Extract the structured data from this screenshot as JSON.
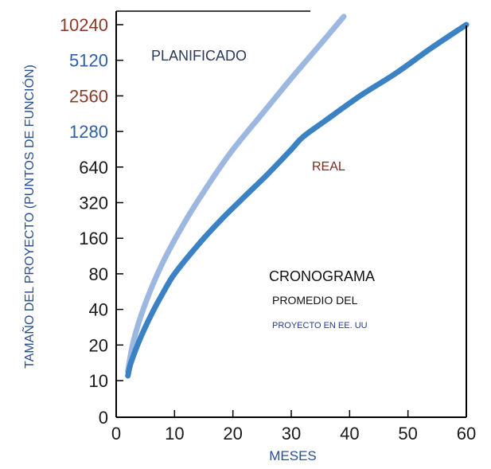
{
  "chart_data": {
    "type": "line",
    "title": "",
    "xlabel": "MESES",
    "ylabel": "TAMAÑO DEL PROYECTO (PUNTOS DE FUNCIÓN)",
    "x_ticks": [
      "0",
      "10",
      "20",
      "30",
      "40",
      "50",
      "60"
    ],
    "y_ticks": [
      {
        "label": "0",
        "color": "#1a1a1a"
      },
      {
        "label": "10",
        "color": "#1a1a1a"
      },
      {
        "label": "20",
        "color": "#1a1a1a"
      },
      {
        "label": "40",
        "color": "#1a1a1a"
      },
      {
        "label": "80",
        "color": "#1a1a1a"
      },
      {
        "label": "160",
        "color": "#1a1a1a"
      },
      {
        "label": "320",
        "color": "#1a1a1a"
      },
      {
        "label": "640",
        "color": "#1a1a1a"
      },
      {
        "label": "1280",
        "color": "#2e5fa6"
      },
      {
        "label": "2560",
        "color": "#8b3a2a"
      },
      {
        "label": "5120",
        "color": "#2e5fa6"
      },
      {
        "label": "10240",
        "color": "#8b3a2a"
      }
    ],
    "xlim": [
      0,
      60
    ],
    "y_scale": "log2",
    "grid": false,
    "series": [
      {
        "name": "PLANIFICADO",
        "color": "#9db8e0",
        "points": [
          [
            2,
            12
          ],
          [
            3,
            22
          ],
          [
            5,
            45
          ],
          [
            8,
            100
          ],
          [
            12,
            230
          ],
          [
            16,
            470
          ],
          [
            20,
            900
          ],
          [
            25,
            1800
          ],
          [
            30,
            3600
          ],
          [
            35,
            7000
          ],
          [
            39,
            12000
          ]
        ]
      },
      {
        "name": "REAL",
        "color": "#3b82c4",
        "points": [
          [
            2,
            11
          ],
          [
            2.5,
            14
          ],
          [
            4,
            22
          ],
          [
            6,
            36
          ],
          [
            8,
            55
          ],
          [
            10,
            80
          ],
          [
            14,
            140
          ],
          [
            18,
            230
          ],
          [
            22,
            360
          ],
          [
            26,
            560
          ],
          [
            30,
            900
          ],
          [
            32,
            1150
          ],
          [
            36,
            1600
          ],
          [
            42,
            2600
          ],
          [
            48,
            4000
          ],
          [
            54,
            6500
          ],
          [
            60,
            10240
          ]
        ]
      }
    ],
    "annotations": {
      "planned_label": "PLANIFICADO",
      "actual_label": "REAL",
      "box_line1": "CRONOGRAMA",
      "box_line2": "PROMEDIO DEL",
      "box_line3": "PROYECTO EN EE. UU"
    }
  }
}
